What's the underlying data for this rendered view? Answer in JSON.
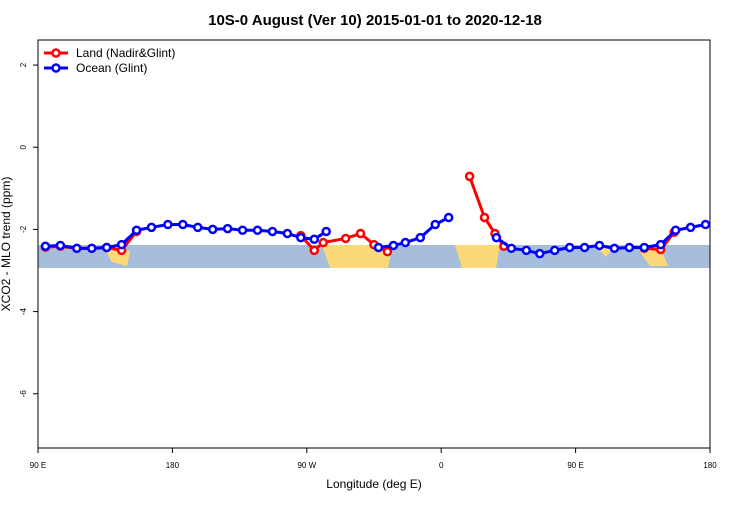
{
  "chart_data": {
    "type": "line",
    "title": "10S-0 August (Ver 10)   2015-01-01 to 2020-12-18",
    "x_label": "Longitude (deg E)",
    "y_label": "XCO2 - MLO trend (ppm)",
    "xlim": [
      90,
      540
    ],
    "ylim": [
      -7.32,
      2.61
    ],
    "xticks": [
      {
        "value": 90,
        "label": "90 E"
      },
      {
        "value": 180,
        "label": "180"
      },
      {
        "value": 270,
        "label": "90 W"
      },
      {
        "value": 360,
        "label": "0"
      },
      {
        "value": 450,
        "label": "90 E"
      },
      {
        "value": 540,
        "label": "180"
      }
    ],
    "yticks": [
      2,
      0,
      -2,
      -4,
      -6
    ],
    "legend": "top-left",
    "series": [
      {
        "name": "Land (Nadir&Glint)",
        "color": "#ff0000",
        "x": [
          95,
          105,
          116,
          126,
          136,
          146,
          156,
          null,
          266,
          275,
          281,
          296,
          306,
          315,
          324,
          null,
          379,
          389,
          396,
          402,
          null,
          496,
          507,
          516
        ],
        "values": [
          -2.43,
          -2.41,
          -2.46,
          -2.46,
          -2.44,
          -2.51,
          -2.05,
          null,
          -2.15,
          -2.51,
          -2.32,
          -2.22,
          -2.1,
          -2.37,
          -2.54,
          null,
          -0.71,
          -1.71,
          -2.1,
          -2.41,
          null,
          -2.46,
          -2.49,
          -2.07
        ]
      },
      {
        "name": "Ocean (Glint)",
        "color": "#0000ff",
        "x": [
          95,
          105,
          116,
          126,
          136,
          146,
          156,
          166,
          177,
          187,
          197,
          207,
          217,
          227,
          237,
          247,
          257,
          266,
          275,
          283,
          null,
          318,
          328,
          336,
          346,
          356,
          365,
          null,
          397,
          407,
          417,
          426,
          436,
          446,
          456,
          466,
          476,
          486,
          496,
          507,
          517,
          527,
          537
        ],
        "values": [
          -2.41,
          -2.39,
          -2.46,
          -2.46,
          -2.44,
          -2.37,
          -2.02,
          -1.95,
          -1.88,
          -1.88,
          -1.95,
          -2.0,
          -1.98,
          -2.02,
          -2.02,
          -2.05,
          -2.1,
          -2.2,
          -2.24,
          -2.05,
          null,
          -2.44,
          -2.39,
          -2.32,
          -2.2,
          -1.88,
          -1.71,
          null,
          -2.2,
          -2.46,
          -2.51,
          -2.59,
          -2.51,
          -2.44,
          -2.44,
          -2.39,
          -2.46,
          -2.44,
          -2.44,
          -2.37,
          -2.02,
          -1.95,
          -1.88
        ]
      }
    ]
  }
}
